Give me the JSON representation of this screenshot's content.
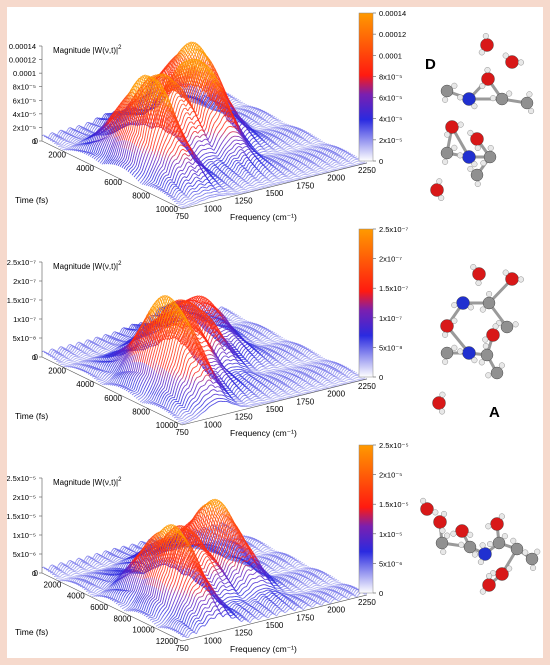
{
  "panels": [
    {
      "z_label": "Magnitude |W(ν,t)|",
      "z_label_sup": "2",
      "z_ticks": [
        "0",
        "2x10⁻⁵",
        "4x10⁻⁵",
        "6x10⁻⁵",
        "8x10⁻⁵",
        "0.0001",
        "0.00012",
        "0.00014"
      ],
      "time_ticks": [
        "2000",
        "4000",
        "6000",
        "8000",
        "10000"
      ],
      "freq_ticks": [
        "750",
        "1000",
        "1250",
        "1500",
        "1750",
        "2000",
        "2250"
      ],
      "colorbar_ticks": [
        "0",
        "2x10⁻⁵",
        "4x10⁻⁵",
        "6x10⁻⁵",
        "8x10⁻⁵",
        "0.0001",
        "0.00012",
        "0.00014"
      ],
      "x_label": "Frequency (cm⁻¹)",
      "y_label": "Time (fs)",
      "molecule_label": "D"
    },
    {
      "z_label": "Magnitude |W(ν,t)|",
      "z_label_sup": "2",
      "z_ticks": [
        "0",
        "5x10⁻⁸",
        "1x10⁻⁷",
        "1.5x10⁻⁷",
        "2x10⁻⁷",
        "2.5x10⁻⁷"
      ],
      "time_ticks": [
        "2000",
        "4000",
        "6000",
        "8000",
        "10000"
      ],
      "freq_ticks": [
        "750",
        "1000",
        "1250",
        "1500",
        "1750",
        "2000",
        "2250"
      ],
      "colorbar_ticks": [
        "0",
        "5x10⁻⁸",
        "1x10⁻⁷",
        "1.5x10⁻⁷",
        "2x10⁻⁷",
        "2.5x10⁻⁷"
      ],
      "x_label": "Frequency (cm⁻¹)",
      "y_label": "Time (fs)",
      "molecule_label": "A"
    },
    {
      "z_label": "Magnitude |W(ν,t)|",
      "z_label_sup": "2",
      "z_ticks": [
        "0",
        "5x10⁻⁶",
        "1x10⁻⁵",
        "1.5x10⁻⁵",
        "2x10⁻⁵",
        "2.5x10⁻⁵"
      ],
      "time_ticks": [
        "2000",
        "4000",
        "6000",
        "8000",
        "10000",
        "12000"
      ],
      "freq_ticks": [
        "750",
        "1000",
        "1250",
        "1500",
        "1750",
        "2000",
        "2250"
      ],
      "colorbar_ticks": [
        "0",
        "5x10⁻⁶",
        "1x10⁻⁵",
        "1.5x10⁻⁵",
        "2x10⁻⁵",
        "2.5x10⁻⁵"
      ],
      "x_label": "Frequency (cm⁻¹)",
      "y_label": "Time (fs)",
      "molecule_label": ""
    }
  ],
  "chart_data": [
    {
      "type": "surface",
      "xlabel": "Frequency (cm⁻¹)",
      "ylabel": "Time (fs)",
      "zlabel": "Magnitude |W(ν,t)|²",
      "xlim": [
        750,
        2250
      ],
      "ylim": [
        0,
        10000
      ],
      "zlim": [
        0,
        0.00014
      ],
      "colormap": [
        "#ffffff",
        "#1f1fe6",
        "#ff2a1a",
        "#ff9800"
      ],
      "peaks": [
        {
          "freq": 1000,
          "time": 5500,
          "value": 0.000135
        },
        {
          "freq": 1300,
          "time": 4000,
          "value": 0.00011
        },
        {
          "freq": 1500,
          "time": 4500,
          "value": 0.00013
        },
        {
          "freq": 1700,
          "time": 2500,
          "value": 0.00012
        }
      ]
    },
    {
      "type": "surface",
      "xlabel": "Frequency (cm⁻¹)",
      "ylabel": "Time (fs)",
      "zlabel": "Magnitude |W(ν,t)|²",
      "xlim": [
        750,
        2250
      ],
      "ylim": [
        0,
        10000
      ],
      "zlim": [
        0,
        2.5e-07
      ],
      "colormap": [
        "#ffffff",
        "#1f1fe6",
        "#ff2a1a",
        "#ff9800"
      ],
      "peaks": [
        {
          "freq": 1050,
          "time": 6500,
          "value": 2.4e-07
        },
        {
          "freq": 1300,
          "time": 5000,
          "value": 1.6e-07
        },
        {
          "freq": 1500,
          "time": 4000,
          "value": 1.5e-07
        },
        {
          "freq": 1750,
          "time": 2500,
          "value": 1.1e-07
        }
      ]
    },
    {
      "type": "surface",
      "xlabel": "Frequency (cm⁻¹)",
      "ylabel": "Time (fs)",
      "zlabel": "Magnitude |W(ν,t)|²",
      "xlim": [
        750,
        2250
      ],
      "ylim": [
        0,
        12000
      ],
      "zlim": [
        0,
        2.5e-05
      ],
      "colormap": [
        "#ffffff",
        "#1f1fe6",
        "#ff2a1a",
        "#ff9800"
      ],
      "peaks": [
        {
          "freq": 1050,
          "time": 8000,
          "value": 2.1e-05
        },
        {
          "freq": 1350,
          "time": 6000,
          "value": 1.5e-05
        },
        {
          "freq": 1600,
          "time": 6000,
          "value": 2e-05
        }
      ]
    }
  ]
}
